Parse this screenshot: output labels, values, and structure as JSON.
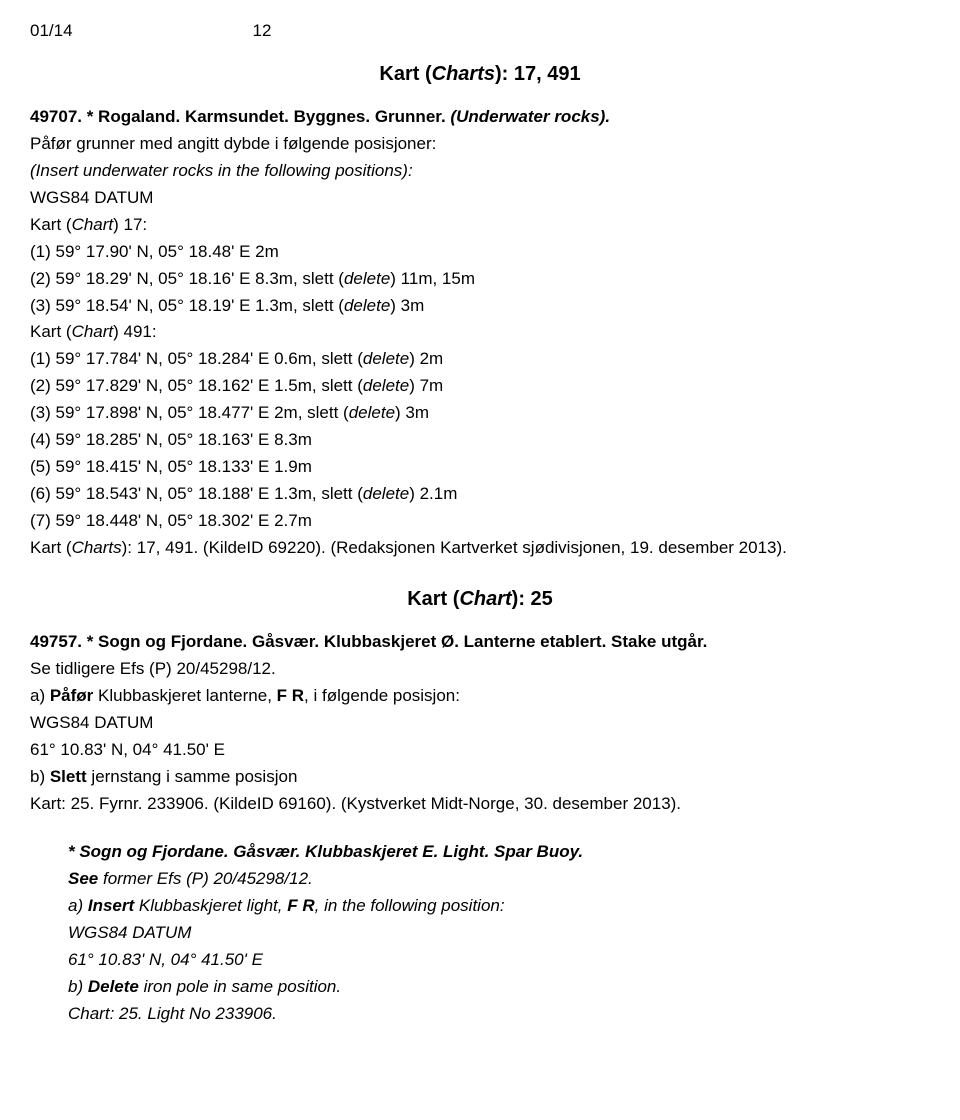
{
  "header": {
    "left": "01/14",
    "page": "12"
  },
  "section1": {
    "title_prefix": "Kart (",
    "title_italic": "Charts",
    "title_suffix": "): 17, 491",
    "line1_bold": "49707. * Rogaland. Karmsundet. Byggnes. Grunner. ",
    "line1_italic": "(Underwater rocks).",
    "line2a": "Påfør grunner med angitt dybde i følgende posisjoner:",
    "line2b_italic": "(Insert underwater rocks in the following positions):",
    "datum": "WGS84 DATUM",
    "chart17_a": "Kart (",
    "chart17_b": "Chart",
    "chart17_c": ") 17:",
    "c17_1": "(1) 59° 17.90' N, 05° 18.48' E 2m",
    "c17_2a": "(2) 59° 18.29' N, 05° 18.16' E 8.3m, slett (",
    "c17_2b": "delete",
    "c17_2c": ") 11m, 15m",
    "c17_3a": "(3) 59° 18.54' N, 05° 18.19' E 1.3m, slett (",
    "c17_3b": "delete",
    "c17_3c": ") 3m",
    "chart491_a": "Kart (",
    "chart491_b": "Chart",
    "chart491_c": ") 491:",
    "c491_1a": "(1) 59° 17.784' N, 05° 18.284' E 0.6m, slett (",
    "c491_1b": "delete",
    "c491_1c": ") 2m",
    "c491_2a": "(2) 59° 17.829' N, 05° 18.162' E 1.5m, slett (",
    "c491_2b": "delete",
    "c491_2c": ") 7m",
    "c491_3a": "(3) 59° 17.898' N, 05° 18.477' E 2m, slett (",
    "c491_3b": "delete",
    "c491_3c": ") 3m",
    "c491_4": "(4) 59° 18.285' N, 05° 18.163' E 8.3m",
    "c491_5": "(5) 59° 18.415' N, 05° 18.133' E 1.9m",
    "c491_6a": "(6) 59° 18.543' N, 05° 18.188' E 1.3m, slett (",
    "c491_6b": "delete",
    "c491_6c": ") 2.1m",
    "c491_7": "(7) 59° 18.448' N, 05° 18.302' E 2.7m",
    "foot_a": "Kart (",
    "foot_b": "Charts",
    "foot_c": "): 17, 491. (KildeID 69220). (Redaksjonen Kartverket sjødivisjonen, 19. desember 2013)."
  },
  "section2": {
    "title_prefix": "Kart (",
    "title_italic": "Chart",
    "title_suffix": "): 25",
    "line1": "49757. * Sogn og Fjordane. Gåsvær. Klubbaskjeret Ø. Lanterne etablert. Stake utgår.",
    "line2": "Se tidligere Efs (P) 20/45298/12.",
    "line3a": "a) ",
    "line3b": "Påfør",
    "line3c": " Klubbaskjeret lanterne, ",
    "line3d": "F R",
    "line3e": ", i følgende posisjon:",
    "datum": "WGS84 DATUM",
    "coord": "61° 10.83' N, 04° 41.50' E",
    "line4a": "b) ",
    "line4b": "Slett",
    "line4c": " jernstang i samme posisjon",
    "foot": "Kart: 25. Fyrnr. 233906. (KildeID 69160). (Kystverket Midt-Norge, 30. desember 2013)."
  },
  "section3": {
    "line1": "* Sogn og Fjordane. Gåsvær. Klubbaskjeret E. Light. Spar Buoy.",
    "line2a": "See",
    "line2b": " former Efs (P) 20/45298/12.",
    "line3a": "a) ",
    "line3b": "Insert",
    "line3c": " Klubbaskjeret light, ",
    "line3d": "F R",
    "line3e": ", in the following position:",
    "datum": "WGS84 DATUM",
    "coord": "61° 10.83' N, 04° 41.50' E",
    "line4a": "b) ",
    "line4b": "Delete",
    "line4c": " iron pole in same position.",
    "foot": "Chart: 25. Light No 233906."
  }
}
